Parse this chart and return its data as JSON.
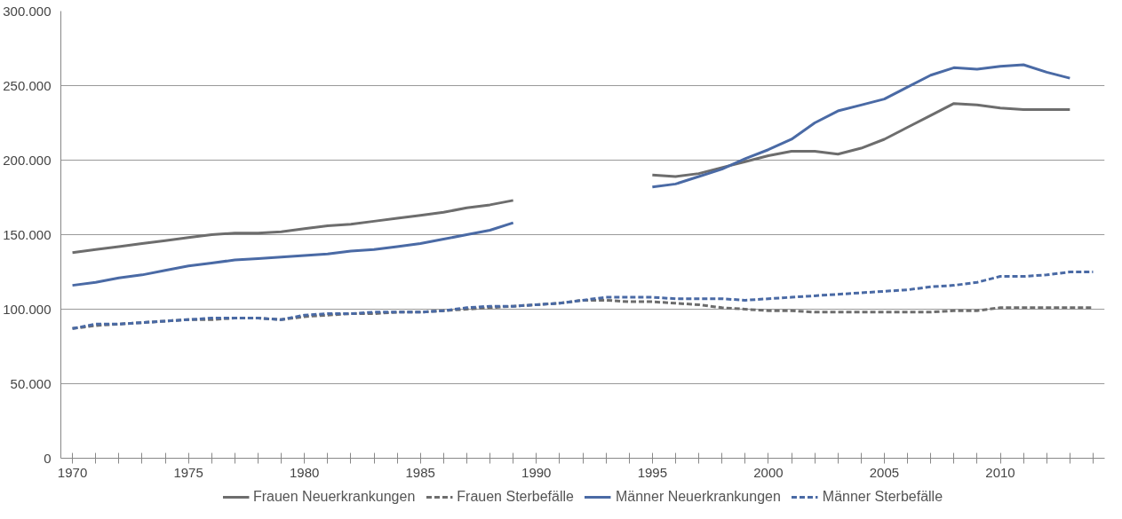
{
  "chart_data": {
    "type": "line",
    "x": [
      1970,
      1971,
      1972,
      1973,
      1974,
      1975,
      1976,
      1977,
      1978,
      1979,
      1980,
      1981,
      1982,
      1983,
      1984,
      1985,
      1986,
      1987,
      1988,
      1989,
      1990,
      1991,
      1992,
      1993,
      1994,
      1995,
      1996,
      1997,
      1998,
      1999,
      2000,
      2001,
      2002,
      2003,
      2004,
      2005,
      2006,
      2007,
      2008,
      2009,
      2010,
      2011,
      2012,
      2013,
      2014
    ],
    "series": [
      {
        "name": "Frauen Neuerkrankungen",
        "color": "#6d6d6d",
        "line_style": "solid",
        "values": [
          138000,
          140000,
          142000,
          144000,
          146000,
          148000,
          150000,
          151000,
          151000,
          152000,
          154000,
          156000,
          157000,
          159000,
          161000,
          163000,
          165000,
          168000,
          170000,
          173000,
          null,
          null,
          null,
          null,
          null,
          190000,
          189000,
          191000,
          195000,
          199000,
          203000,
          206000,
          206000,
          204000,
          208000,
          214000,
          222000,
          230000,
          238000,
          237000,
          235000,
          234000,
          234000,
          234000,
          null
        ]
      },
      {
        "name": "Frauen Sterbefälle",
        "color": "#6d6d6d",
        "line_style": "dashed",
        "values": [
          87000,
          89000,
          90000,
          91000,
          92000,
          93000,
          93000,
          94000,
          94000,
          93000,
          95000,
          96000,
          97000,
          97000,
          98000,
          98000,
          99000,
          100000,
          101000,
          102000,
          103000,
          104000,
          106000,
          106000,
          105000,
          105000,
          104000,
          103000,
          101000,
          100000,
          99000,
          99000,
          98000,
          98000,
          98000,
          98000,
          98000,
          98000,
          99000,
          99000,
          101000,
          101000,
          101000,
          101000,
          101000
        ]
      },
      {
        "name": "Männer Neuerkrankungen",
        "color": "#4a6aa5",
        "line_style": "solid",
        "values": [
          116000,
          118000,
          121000,
          123000,
          126000,
          129000,
          131000,
          133000,
          134000,
          135000,
          136000,
          137000,
          139000,
          140000,
          142000,
          144000,
          147000,
          150000,
          153000,
          158000,
          null,
          null,
          null,
          null,
          null,
          182000,
          184000,
          189000,
          194000,
          201000,
          207000,
          214000,
          225000,
          233000,
          237000,
          241000,
          249000,
          257000,
          262000,
          261000,
          263000,
          264000,
          259000,
          255000,
          null
        ]
      },
      {
        "name": "Männer Sterbefälle",
        "color": "#4a6aa5",
        "line_style": "dashed",
        "values": [
          87000,
          90000,
          90000,
          91000,
          92000,
          93000,
          94000,
          94000,
          94000,
          93000,
          96000,
          97000,
          97000,
          98000,
          98000,
          98000,
          99000,
          101000,
          102000,
          102000,
          103000,
          104000,
          106000,
          108000,
          108000,
          108000,
          107000,
          107000,
          107000,
          106000,
          107000,
          108000,
          109000,
          110000,
          111000,
          112000,
          113000,
          115000,
          116000,
          118000,
          122000,
          122000,
          123000,
          125000,
          125000
        ]
      }
    ],
    "xlim": [
      1969.5,
      2014.5
    ],
    "xticks": [
      1970,
      {
        "value": 1971,
        "label": null
      },
      {
        "value": 1972,
        "label": null
      },
      {
        "value": 1973,
        "label": null
      },
      {
        "value": 1974,
        "label": null
      },
      1975,
      {
        "value": 1976,
        "label": null
      },
      {
        "value": 1977,
        "label": null
      },
      {
        "value": 1978,
        "label": null
      },
      {
        "value": 1979,
        "label": null
      },
      1980,
      {
        "value": 1981,
        "label": null
      },
      {
        "value": 1982,
        "label": null
      },
      {
        "value": 1983,
        "label": null
      },
      {
        "value": 1984,
        "label": null
      },
      1985,
      {
        "value": 1986,
        "label": null
      },
      {
        "value": 1987,
        "label": null
      },
      {
        "value": 1988,
        "label": null
      },
      {
        "value": 1989,
        "label": null
      },
      1990,
      {
        "value": 1991,
        "label": null
      },
      {
        "value": 1992,
        "label": null
      },
      {
        "value": 1993,
        "label": null
      },
      {
        "value": 1994,
        "label": null
      },
      1995,
      {
        "value": 1996,
        "label": null
      },
      {
        "value": 1997,
        "label": null
      },
      {
        "value": 1998,
        "label": null
      },
      {
        "value": 1999,
        "label": null
      },
      2000,
      {
        "value": 2001,
        "label": null
      },
      {
        "value": 2002,
        "label": null
      },
      {
        "value": 2003,
        "label": null
      },
      {
        "value": 2004,
        "label": null
      },
      2005,
      {
        "value": 2006,
        "label": null
      },
      {
        "value": 2007,
        "label": null
      },
      {
        "value": 2008,
        "label": null
      },
      {
        "value": 2009,
        "label": null
      },
      2010,
      {
        "value": 2011,
        "label": null
      },
      {
        "value": 2012,
        "label": null
      },
      {
        "value": 2013,
        "label": null
      },
      {
        "value": 2014,
        "label": null
      }
    ],
    "ylim": [
      0,
      300000
    ],
    "yticks": [
      {
        "value": 0,
        "label": "0"
      },
      {
        "value": 50000,
        "label": "50.000"
      },
      {
        "value": 100000,
        "label": "100.000"
      },
      {
        "value": 150000,
        "label": "150.000"
      },
      {
        "value": 200000,
        "label": "200.000"
      },
      {
        "value": 250000,
        "label": "250.000"
      },
      {
        "value": 300000,
        "label": "300.000"
      }
    ],
    "grid": "y",
    "legend": "bottom",
    "marker": "none"
  }
}
